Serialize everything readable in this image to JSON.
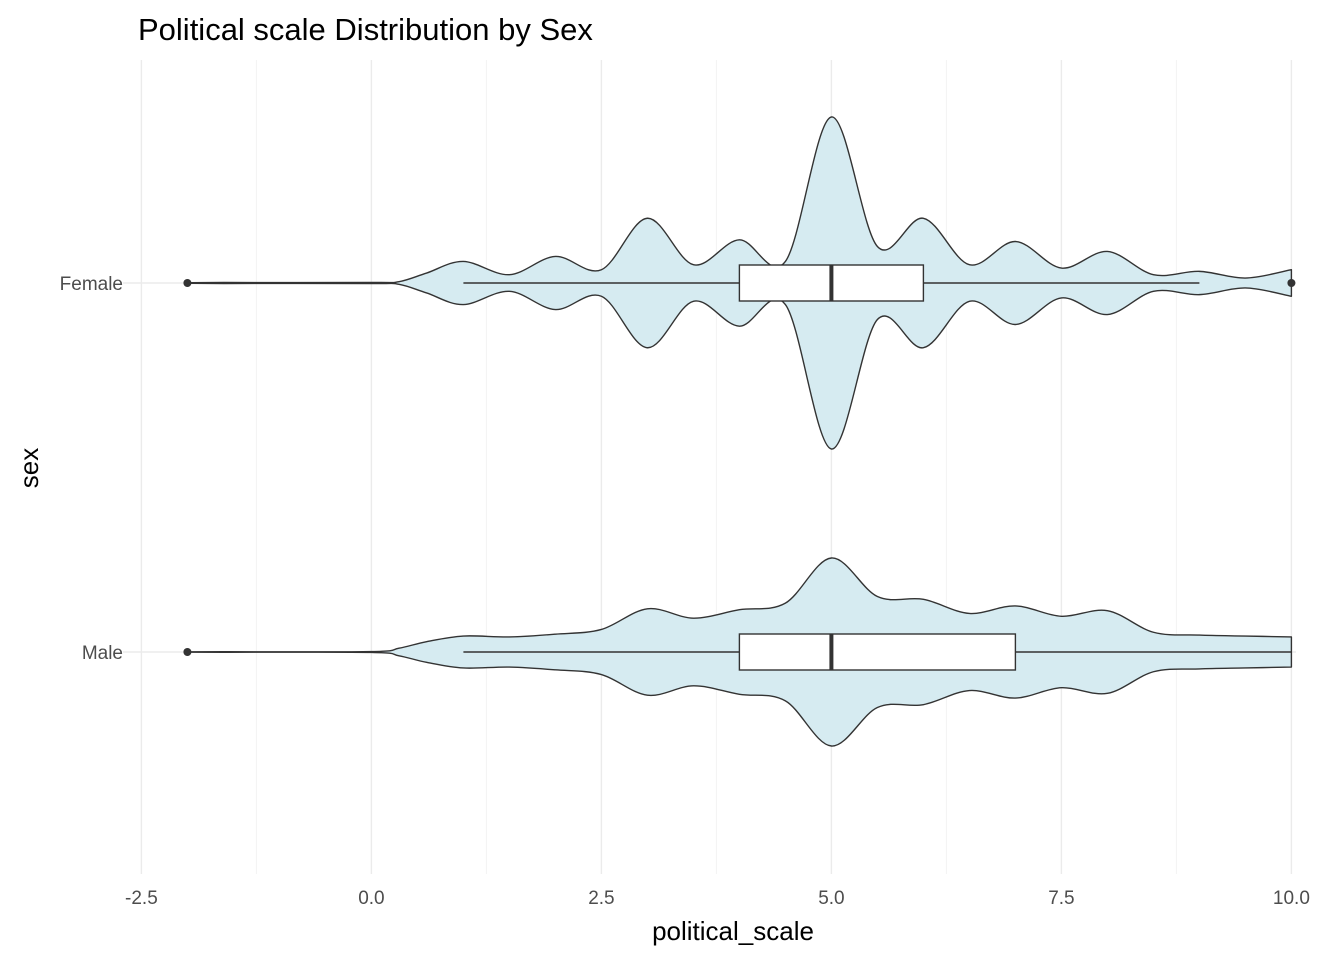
{
  "chart_data": {
    "type": "violin",
    "title": "Political scale Distribution by Sex",
    "xlabel": "political_scale",
    "ylabel": "sex",
    "orientation": "horizontal",
    "xlim": [
      -2.7,
      10.05
    ],
    "x_ticks": [
      -2.5,
      0.0,
      2.5,
      5.0,
      7.5,
      10.0
    ],
    "x_tick_labels": [
      "-2.5",
      "0.0",
      "2.5",
      "5.0",
      "7.5",
      "10.0"
    ],
    "categories": [
      "Female",
      "Male"
    ],
    "grid": true,
    "colors": {
      "violin_fill": "#d6ebf1",
      "stroke": "#333333",
      "box_fill": "#ffffff",
      "grid_major": "#ebebeb",
      "grid_minor": "#f3f3f3"
    },
    "series": [
      {
        "name": "Female",
        "violin_range": [
          -2.0,
          10.0
        ],
        "box": {
          "whisker_low": 1.0,
          "q1": 4.0,
          "median": 5.0,
          "q3": 6.0,
          "whisker_high": 9.0
        },
        "outliers": [
          -2.0,
          10.0
        ],
        "density": [
          [
            -2.0,
            0.002
          ],
          [
            -1.6,
            0.003
          ],
          [
            0.0,
            0.003
          ],
          [
            0.3,
            0.008
          ],
          [
            0.6,
            0.06
          ],
          [
            1.0,
            0.13
          ],
          [
            1.5,
            0.05
          ],
          [
            2.0,
            0.16
          ],
          [
            2.5,
            0.08
          ],
          [
            3.0,
            0.39
          ],
          [
            3.5,
            0.11
          ],
          [
            4.0,
            0.26
          ],
          [
            4.5,
            0.13
          ],
          [
            5.0,
            1.0
          ],
          [
            5.5,
            0.22
          ],
          [
            6.0,
            0.39
          ],
          [
            6.5,
            0.11
          ],
          [
            7.0,
            0.25
          ],
          [
            7.5,
            0.09
          ],
          [
            8.0,
            0.19
          ],
          [
            8.5,
            0.05
          ],
          [
            9.0,
            0.07
          ],
          [
            9.5,
            0.03
          ],
          [
            10.0,
            0.08
          ]
        ]
      },
      {
        "name": "Male",
        "violin_range": [
          -2.0,
          10.0
        ],
        "box": {
          "whisker_low": 1.0,
          "q1": 4.0,
          "median": 5.0,
          "q3": 7.0,
          "whisker_high": 10.0
        },
        "outliers": [
          -2.0
        ],
        "density": [
          [
            -2.0,
            0.002
          ],
          [
            -1.6,
            0.003
          ],
          [
            0.0,
            0.004
          ],
          [
            0.3,
            0.04
          ],
          [
            0.6,
            0.11
          ],
          [
            1.0,
            0.17
          ],
          [
            1.5,
            0.16
          ],
          [
            2.0,
            0.19
          ],
          [
            2.5,
            0.24
          ],
          [
            3.0,
            0.46
          ],
          [
            3.5,
            0.36
          ],
          [
            4.0,
            0.45
          ],
          [
            4.5,
            0.52
          ],
          [
            5.0,
            1.0
          ],
          [
            5.5,
            0.59
          ],
          [
            6.0,
            0.56
          ],
          [
            6.5,
            0.41
          ],
          [
            7.0,
            0.49
          ],
          [
            7.5,
            0.38
          ],
          [
            8.0,
            0.44
          ],
          [
            8.5,
            0.21
          ],
          [
            9.0,
            0.18
          ],
          [
            9.5,
            0.17
          ],
          [
            10.0,
            0.16
          ]
        ]
      }
    ]
  }
}
